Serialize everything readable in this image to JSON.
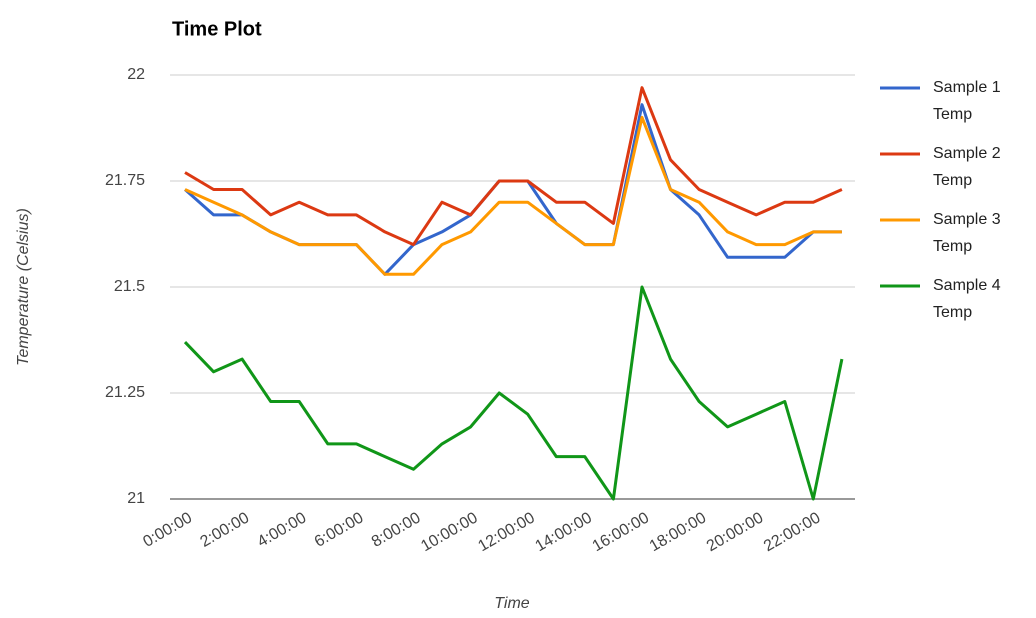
{
  "chart_data": {
    "type": "line",
    "title": "Time Plot",
    "x_label": "Time",
    "y_label": "Temperature (Celsius)",
    "categories": [
      "0:00:00",
      null,
      "2:00:00",
      null,
      "4:00:00",
      null,
      "6:00:00",
      null,
      "8:00:00",
      null,
      "10:00:00",
      null,
      "12:00:00",
      null,
      "14:00:00",
      null,
      "16:00:00",
      null,
      "18:00:00",
      null,
      "20:00:00",
      null,
      "22:00:00",
      null
    ],
    "ylim": [
      21,
      22
    ],
    "yticks": [
      21,
      21.25,
      21.5,
      21.75,
      22
    ],
    "grid": true,
    "legend": "right",
    "series": [
      {
        "name": "Sample 1 Temp",
        "color": "#3366cc",
        "values": [
          21.73,
          21.67,
          21.67,
          21.63,
          21.6,
          21.6,
          21.6,
          21.53,
          21.6,
          21.63,
          21.67,
          21.75,
          21.75,
          21.65,
          21.6,
          21.6,
          21.93,
          21.73,
          21.67,
          21.57,
          21.57,
          21.57,
          21.63,
          21.63
        ]
      },
      {
        "name": "Sample 2 Temp",
        "color": "#dc3912",
        "values": [
          21.77,
          21.73,
          21.73,
          21.67,
          21.7,
          21.67,
          21.67,
          21.63,
          21.6,
          21.7,
          21.67,
          21.75,
          21.75,
          21.7,
          21.7,
          21.65,
          21.97,
          21.8,
          21.73,
          21.7,
          21.67,
          21.7,
          21.7,
          21.73
        ]
      },
      {
        "name": "Sample 3 Temp",
        "color": "#ff9900",
        "values": [
          21.73,
          21.7,
          21.67,
          21.63,
          21.6,
          21.6,
          21.6,
          21.53,
          21.53,
          21.6,
          21.63,
          21.7,
          21.7,
          21.65,
          21.6,
          21.6,
          21.9,
          21.73,
          21.7,
          21.63,
          21.6,
          21.6,
          21.63,
          21.63
        ]
      },
      {
        "name": "Sample 4 Temp",
        "color": "#109618",
        "values": [
          21.37,
          21.3,
          21.33,
          21.23,
          21.23,
          21.13,
          21.13,
          21.1,
          21.07,
          21.13,
          21.17,
          21.25,
          21.2,
          21.1,
          21.1,
          21.0,
          21.5,
          21.33,
          21.23,
          21.17,
          21.2,
          21.23,
          21.0,
          21.33
        ]
      }
    ]
  }
}
